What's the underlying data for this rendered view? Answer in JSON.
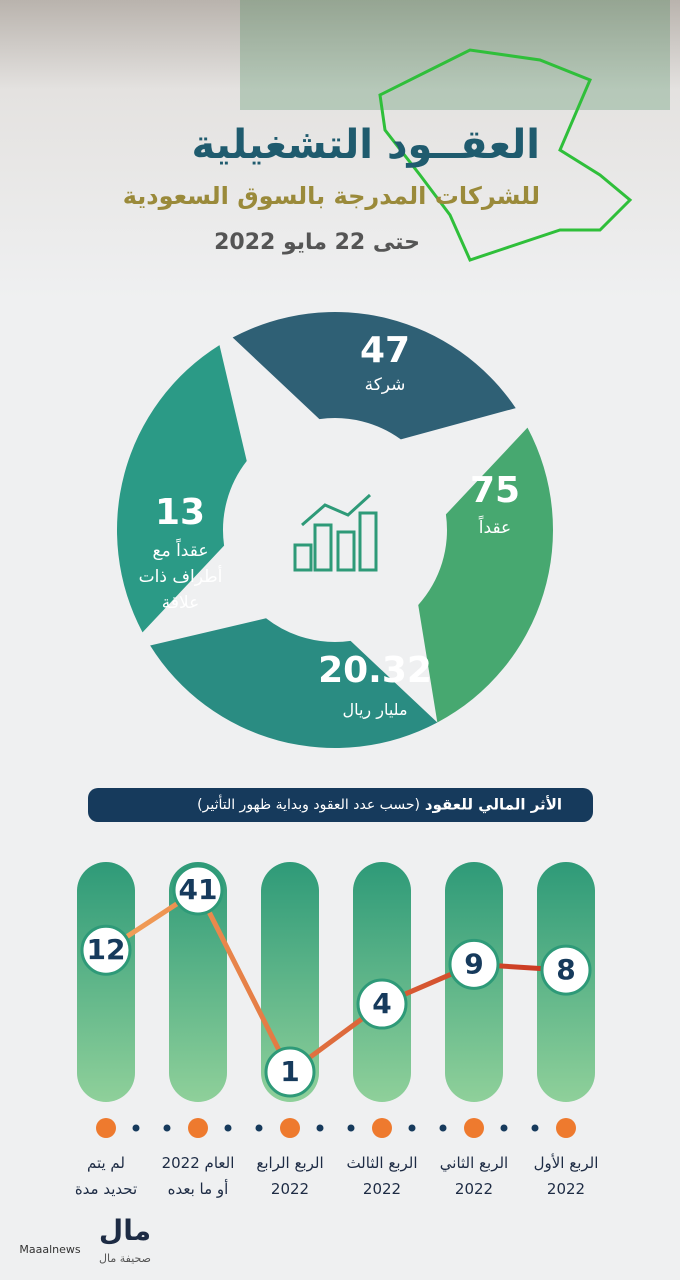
{
  "header": {
    "title": "العقــود التشغيلية",
    "subtitle": "للشركات المدرجة بالسوق السعودية",
    "date": "حتى 22 مايو 2022"
  },
  "stats": [
    {
      "value": "47",
      "label": "شركة"
    },
    {
      "value": "75",
      "label": "عقداً"
    },
    {
      "value": "20.32",
      "label": "مليار ريال"
    },
    {
      "value": "13",
      "label": "عقداً مع أطراف ذات علاقة"
    }
  ],
  "chart_data": {
    "type": "line",
    "title": "الأثر المالي للعقود",
    "subtitle": "(حسب عدد العقود وبداية ظهور التأثير)",
    "categories": [
      "الربع الأول 2022",
      "الربع الثاني 2022",
      "الربع الثالث 2022",
      "الربع الرابع 2022",
      "العام 2022 أو ما بعده",
      "لم يتم تحديد مدة"
    ],
    "values": [
      8,
      9,
      4,
      1,
      41,
      12
    ],
    "log_scale": true,
    "ylim": [
      1,
      41
    ],
    "color": "#d9542a"
  },
  "footer": {
    "handle": "Maaalnews",
    "logo": "مال",
    "logo_sub": "صحيفة مال"
  }
}
